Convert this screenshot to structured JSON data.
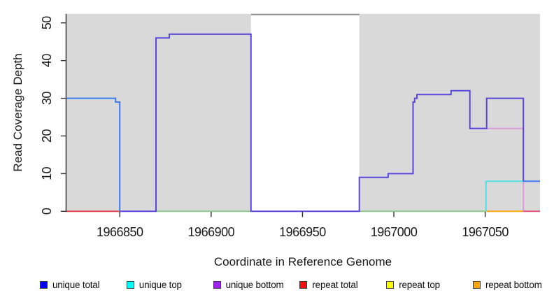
{
  "figure": {
    "background": "#ffffff",
    "panel_background": "#d9d9d9",
    "axis_color": "#2e2e2e",
    "tick_label_color": "#1a1a1a"
  },
  "chart_data": {
    "type": "line",
    "subtype": "step-coverage",
    "title": "",
    "xlabel": "Coordinate in Reference Genome",
    "ylabel": "Read Coverage Depth",
    "xlim": [
      1966821,
      1967080
    ],
    "ylim": [
      0,
      52.4
    ],
    "x_ticks": [
      1966850,
      1966900,
      1966950,
      1967000,
      1967050
    ],
    "y_ticks": [
      0,
      10,
      20,
      30,
      40,
      50
    ],
    "grid": false,
    "legend_position": "bottom",
    "panel_background": "#d9d9d9",
    "gap_region": {
      "note": "white unmapped region over gray panel",
      "x0": 1966921.8,
      "x1": 1966981.1,
      "fill": "#ffffff",
      "top_border_color": "#8c8c8c"
    },
    "series": [
      {
        "name": "repeat-total-baseline",
        "color": "#e2474f",
        "points": [
          [
            1966821,
            0
          ],
          [
            1966850,
            0
          ]
        ]
      },
      {
        "name": "gap-baseline-left",
        "color": "#8ccb8c",
        "points": [
          [
            1966869.8,
            0
          ],
          [
            1966921.8,
            0
          ]
        ]
      },
      {
        "name": "gap-baseline-right",
        "color": "#8ccb8c",
        "points": [
          [
            1966981.1,
            0
          ],
          [
            1967050.4,
            0
          ]
        ]
      },
      {
        "name": "repeat-bottom-baseline",
        "color": "#ffa513",
        "points": [
          [
            1967050.4,
            0
          ],
          [
            1967070.9,
            0
          ]
        ]
      },
      {
        "name": "repeat-pink-22",
        "color": "#db9bdb",
        "points": [
          [
            1967041.6,
            22
          ],
          [
            1967070.9,
            22
          ],
          [
            1967070.9,
            0
          ]
        ]
      },
      {
        "name": "repeat-pink-baseline-right",
        "color": "#e0557a",
        "points": [
          [
            1967070.9,
            0
          ],
          [
            1967080,
            0
          ]
        ]
      },
      {
        "name": "unique-top",
        "color": "#57dde2",
        "points": [
          [
            1967050.4,
            0
          ],
          [
            1967050.4,
            8
          ],
          [
            1967070.9,
            8
          ]
        ]
      },
      {
        "name": "unique-total-left",
        "color": "#3e7bf2",
        "points": [
          [
            1966821,
            30
          ],
          [
            1966847.7,
            30
          ],
          [
            1966847.7,
            29
          ],
          [
            1966850,
            29
          ],
          [
            1966850,
            0
          ]
        ]
      },
      {
        "name": "unique-bottom-main",
        "color": "#5b45db",
        "points": [
          [
            1966850,
            0
          ],
          [
            1966869.8,
            0
          ],
          [
            1966869.8,
            46
          ],
          [
            1966877.1,
            46
          ],
          [
            1966877.1,
            47
          ],
          [
            1966921.8,
            47
          ],
          [
            1966921.8,
            0
          ],
          [
            1966981.1,
            0
          ],
          [
            1966981.1,
            9
          ],
          [
            1966996.9,
            9
          ],
          [
            1966996.9,
            10
          ],
          [
            1967010.5,
            10
          ],
          [
            1967010.5,
            29
          ],
          [
            1967011.4,
            29
          ],
          [
            1967011.4,
            30
          ],
          [
            1967012.6,
            30
          ],
          [
            1967012.6,
            31
          ],
          [
            1967031.3,
            31
          ],
          [
            1967031.3,
            32
          ],
          [
            1967041.6,
            32
          ],
          [
            1967041.6,
            22
          ],
          [
            1967050.8,
            22
          ],
          [
            1967050.8,
            30
          ],
          [
            1967070.9,
            30
          ],
          [
            1967070.9,
            8
          ]
        ]
      },
      {
        "name": "unique-total-right",
        "color": "#3e7bf2",
        "points": [
          [
            1967070.9,
            8
          ],
          [
            1967080,
            8
          ]
        ]
      }
    ]
  },
  "legend": {
    "items": [
      {
        "label": "unique total",
        "color": "#0000ee"
      },
      {
        "label": "unique top",
        "color": "#00ffff"
      },
      {
        "label": "unique bottom",
        "color": "#a021f0"
      },
      {
        "label": "repeat total",
        "color": "#f50f0f"
      },
      {
        "label": "repeat top",
        "color": "#ffff00"
      },
      {
        "label": "repeat bottom",
        "color": "#ffa500"
      }
    ]
  }
}
